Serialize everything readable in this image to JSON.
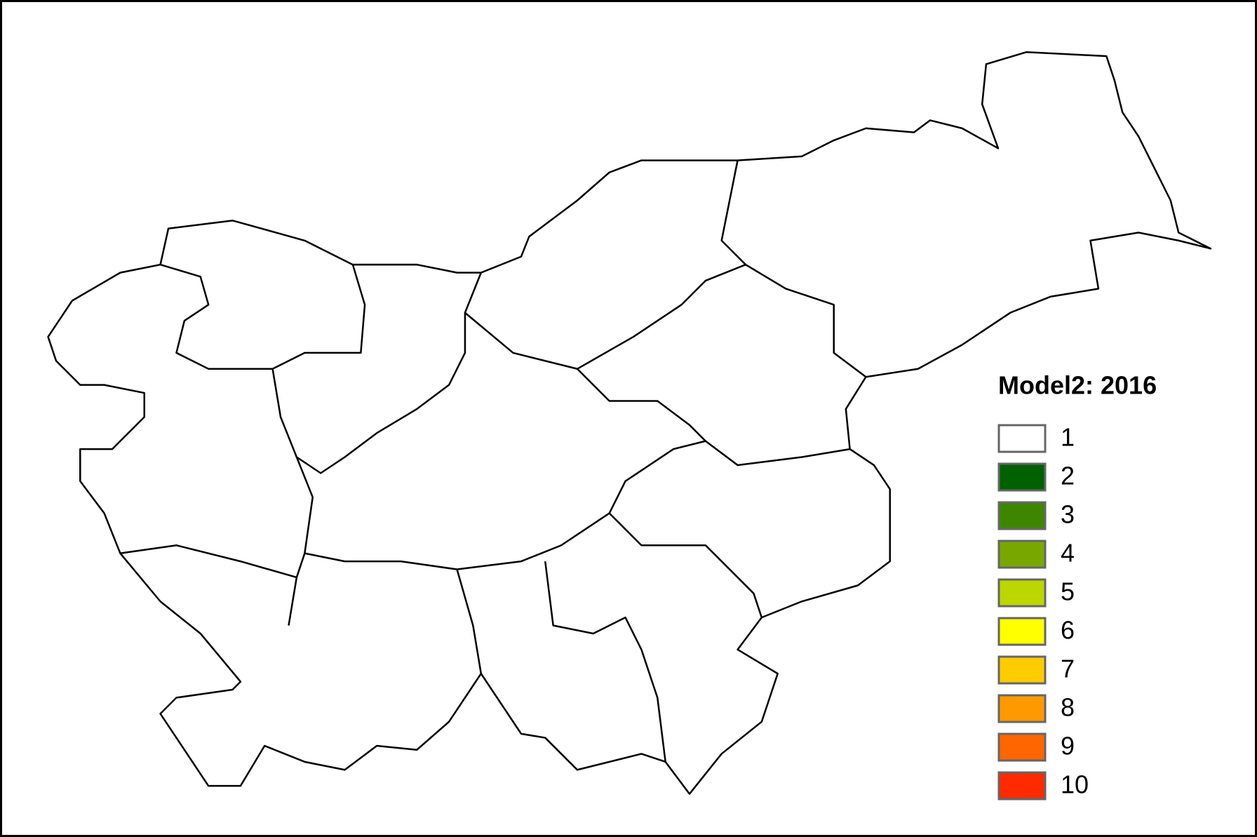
{
  "map": {
    "legend": {
      "title": "Model2: 2016",
      "items": [
        {
          "value": 1,
          "color": "#ffffff"
        },
        {
          "value": 2,
          "color": "#006100"
        },
        {
          "value": 3,
          "color": "#3d8700"
        },
        {
          "value": 4,
          "color": "#78a800"
        },
        {
          "value": 5,
          "color": "#bcd600"
        },
        {
          "value": 6,
          "color": "#ffff00"
        },
        {
          "value": 7,
          "color": "#ffcc00"
        },
        {
          "value": 8,
          "color": "#ff9900"
        },
        {
          "value": 9,
          "color": "#ff6600"
        },
        {
          "value": 10,
          "color": "#ff2a00"
        }
      ]
    }
  }
}
